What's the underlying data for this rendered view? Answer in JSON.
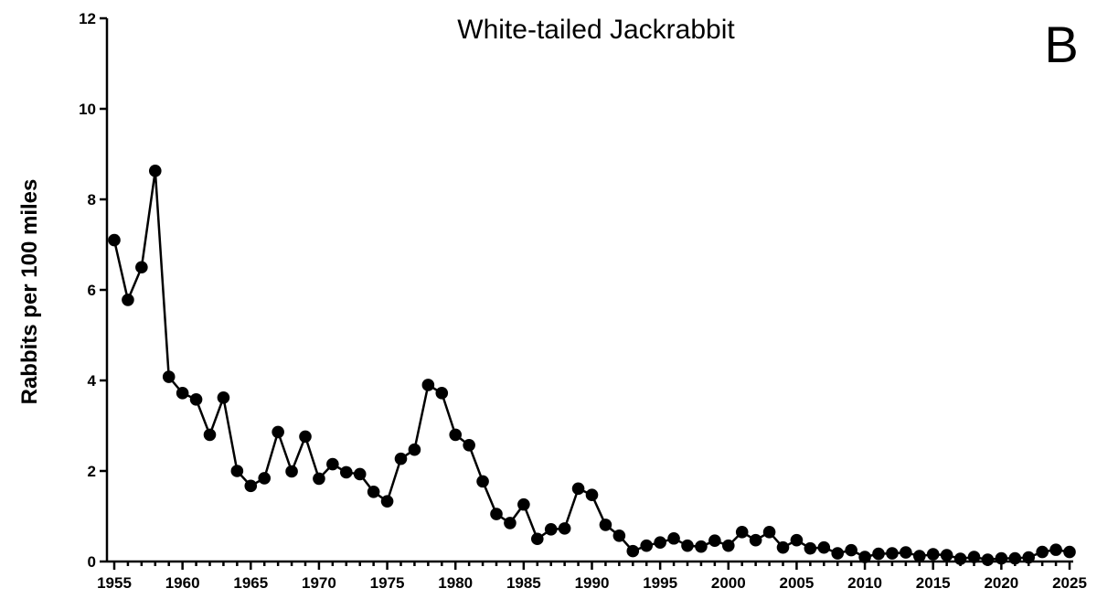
{
  "chart_data": {
    "type": "line",
    "title": "White-tailed Jackrabbit",
    "panel_label": "B",
    "xlabel": "",
    "ylabel": "Rabbits per 100 miles",
    "xlim": [
      1955,
      2025
    ],
    "ylim": [
      0,
      12
    ],
    "x_ticks": [
      1955,
      1960,
      1965,
      1970,
      1975,
      1980,
      1985,
      1990,
      1995,
      2000,
      2005,
      2010,
      2015,
      2020,
      2025
    ],
    "y_ticks": [
      0,
      2,
      4,
      6,
      8,
      10,
      12
    ],
    "grid": false,
    "legend": "none",
    "markers": "filled-circle",
    "color": "#000000",
    "x": [
      1955,
      1956,
      1957,
      1958,
      1959,
      1960,
      1961,
      1962,
      1963,
      1964,
      1965,
      1966,
      1967,
      1968,
      1969,
      1970,
      1971,
      1972,
      1973,
      1974,
      1975,
      1976,
      1977,
      1978,
      1979,
      1980,
      1981,
      1982,
      1983,
      1984,
      1985,
      1986,
      1987,
      1988,
      1989,
      1990,
      1991,
      1992,
      1993,
      1994,
      1995,
      1996,
      1997,
      1998,
      1999,
      2000,
      2001,
      2002,
      2003,
      2004,
      2005,
      2006,
      2007,
      2008,
      2009,
      2010,
      2011,
      2012,
      2013,
      2014,
      2015,
      2016,
      2017,
      2018,
      2019,
      2020,
      2021,
      2022,
      2023,
      2024,
      2025
    ],
    "values": [
      7.1,
      5.78,
      6.5,
      8.63,
      4.08,
      3.72,
      3.58,
      2.8,
      3.62,
      2.0,
      1.67,
      1.84,
      2.86,
      1.99,
      2.76,
      1.83,
      2.15,
      1.97,
      1.93,
      1.54,
      1.33,
      2.27,
      2.47,
      3.9,
      3.72,
      2.8,
      2.57,
      1.77,
      1.05,
      0.85,
      1.26,
      0.5,
      0.71,
      0.73,
      1.61,
      1.47,
      0.81,
      0.57,
      0.23,
      0.35,
      0.42,
      0.51,
      0.35,
      0.33,
      0.46,
      0.35,
      0.65,
      0.47,
      0.65,
      0.31,
      0.47,
      0.29,
      0.31,
      0.18,
      0.25,
      0.1,
      0.17,
      0.18,
      0.2,
      0.12,
      0.16,
      0.14,
      0.06,
      0.1,
      0.04,
      0.07,
      0.07,
      0.09,
      0.21,
      0.26,
      0.21
    ]
  }
}
